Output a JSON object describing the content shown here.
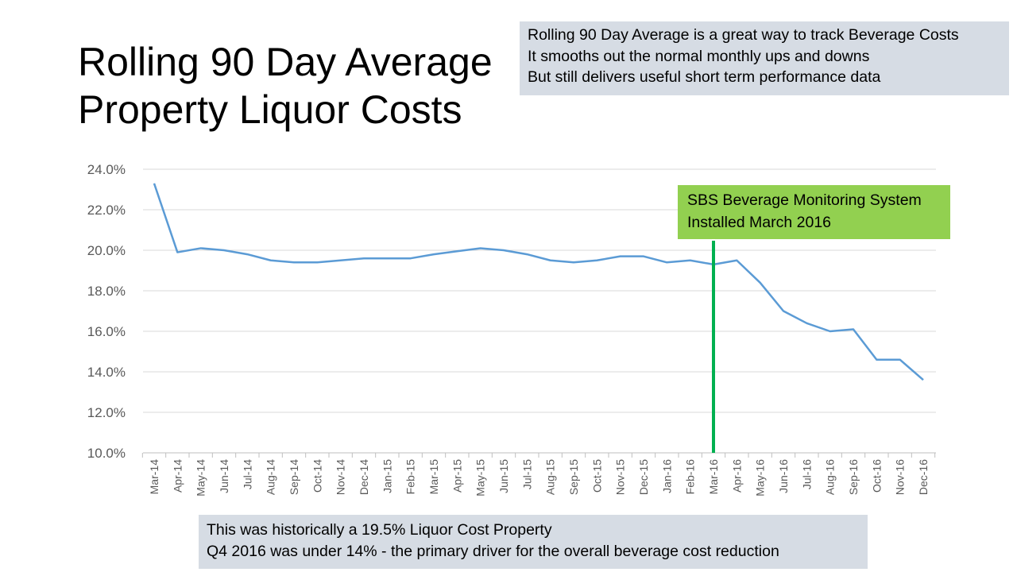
{
  "chart_data": {
    "type": "line",
    "title": "Rolling 90 Day Average Property Liquor Costs",
    "title_lines": [
      "Rolling 90 Day Average",
      "Property Liquor Costs"
    ],
    "categories": [
      "Mar-14",
      "Apr-14",
      "May-14",
      "Jun-14",
      "Jul-14",
      "Aug-14",
      "Sep-14",
      "Oct-14",
      "Nov-14",
      "Dec-14",
      "Jan-15",
      "Feb-15",
      "Mar-15",
      "Apr-15",
      "May-15",
      "Jun-15",
      "Jul-15",
      "Aug-15",
      "Sep-15",
      "Oct-15",
      "Nov-15",
      "Dec-15",
      "Jan-16",
      "Feb-16",
      "Mar-16",
      "Apr-16",
      "May-16",
      "Jun-16",
      "Jul-16",
      "Aug-16",
      "Sep-16",
      "Oct-16",
      "Nov-16",
      "Dec-16"
    ],
    "series": [
      {
        "values": [
          23.3,
          19.9,
          20.1,
          20.0,
          19.8,
          19.5,
          19.4,
          19.4,
          19.5,
          19.6,
          19.6,
          19.6,
          19.8,
          19.95,
          20.1,
          20.0,
          19.8,
          19.5,
          19.4,
          19.5,
          19.7,
          19.7,
          19.4,
          19.5,
          19.3,
          19.5,
          18.4,
          17.0,
          16.4,
          16.0,
          16.1,
          14.6,
          14.6,
          13.6
        ],
        "color": "#5b9bd5"
      }
    ],
    "ylim": [
      10,
      24
    ],
    "yticks": [
      "10.0%",
      "12.0%",
      "14.0%",
      "16.0%",
      "18.0%",
      "20.0%",
      "22.0%",
      "24.0%"
    ],
    "grid": true,
    "xlabel": "",
    "ylabel": "",
    "marker": {
      "category": "Mar-16",
      "color": "#00b050"
    },
    "annotations": {
      "top": [
        "Rolling 90 Day Average is a great way to track Beverage Costs",
        "It smooths out the normal monthly ups and downs",
        "But still delivers useful short term performance data"
      ],
      "callout": [
        "SBS Beverage Monitoring System",
        "Installed March 2016"
      ],
      "callout_color": "#92d050",
      "bottom": [
        "This was historically a 19.5% Liquor Cost Property",
        "Q4 2016 was under 14% - the primary driver for the overall beverage cost reduction"
      ]
    }
  }
}
